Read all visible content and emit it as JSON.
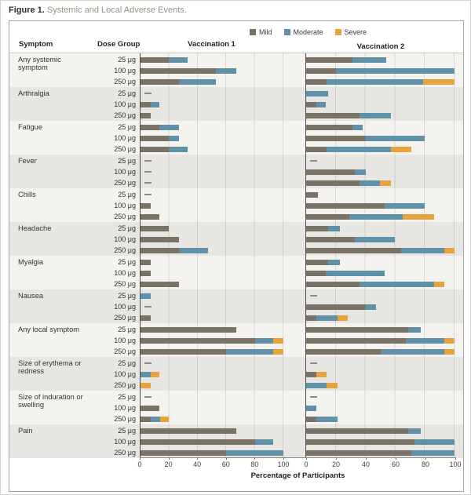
{
  "figure": {
    "label": "Figure 1.",
    "title": "Systemic and Local Adverse Events."
  },
  "chart_data": {
    "type": "bar",
    "subtype": "horizontal_stacked",
    "panels": [
      "Vaccination 1",
      "Vaccination 2"
    ],
    "column_headers": {
      "symptom": "Symptom",
      "dose": "Dose Group"
    },
    "legend": [
      {
        "name": "Mild",
        "color": "#7a7265"
      },
      {
        "name": "Moderate",
        "color": "#6191a8"
      },
      {
        "name": "Severe",
        "color": "#e7a33c"
      }
    ],
    "dose_groups": [
      "25 μg",
      "100 μg",
      "250 μg"
    ],
    "x_axis": {
      "ticks": [
        0,
        20,
        40,
        60,
        80,
        100
      ],
      "min": 0,
      "max": 100,
      "label": "Percentage of Participants"
    },
    "zero_marker": "—",
    "series_order": [
      "mild",
      "moderate",
      "severe"
    ],
    "symptoms": [
      {
        "name": "Any systemic symptom",
        "vaccination1": [
          [
            20,
            13,
            0
          ],
          [
            53,
            14,
            0
          ],
          [
            27,
            26,
            0
          ]
        ],
        "vaccination2": [
          [
            31,
            23,
            0
          ],
          [
            20,
            80,
            0
          ],
          [
            14,
            65,
            21
          ]
        ]
      },
      {
        "name": "Arthralgia",
        "vaccination1": [
          [
            0,
            0,
            0
          ],
          [
            7,
            6,
            0
          ],
          [
            7,
            0,
            0
          ]
        ],
        "vaccination2": [
          [
            0,
            15,
            0
          ],
          [
            7,
            6,
            0
          ],
          [
            36,
            21,
            0
          ]
        ]
      },
      {
        "name": "Fatigue",
        "vaccination1": [
          [
            13,
            14,
            0
          ],
          [
            20,
            7,
            0
          ],
          [
            20,
            13,
            0
          ]
        ],
        "vaccination2": [
          [
            31,
            7,
            0
          ],
          [
            40,
            40,
            0
          ],
          [
            14,
            43,
            14
          ]
        ]
      },
      {
        "name": "Fever",
        "vaccination1": [
          [
            0,
            0,
            0
          ],
          [
            0,
            0,
            0
          ],
          [
            0,
            0,
            0
          ]
        ],
        "vaccination2": [
          [
            0,
            0,
            0
          ],
          [
            33,
            7,
            0
          ],
          [
            36,
            14,
            7
          ]
        ]
      },
      {
        "name": "Chills",
        "vaccination1": [
          [
            0,
            0,
            0
          ],
          [
            7,
            0,
            0
          ],
          [
            13,
            0,
            0
          ]
        ],
        "vaccination2": [
          [
            8,
            0,
            0
          ],
          [
            53,
            27,
            0
          ],
          [
            29,
            36,
            21
          ]
        ]
      },
      {
        "name": "Headache",
        "vaccination1": [
          [
            20,
            0,
            0
          ],
          [
            27,
            0,
            0
          ],
          [
            27,
            20,
            0
          ]
        ],
        "vaccination2": [
          [
            15,
            8,
            0
          ],
          [
            33,
            27,
            0
          ],
          [
            64,
            29,
            7
          ]
        ]
      },
      {
        "name": "Myalgia",
        "vaccination1": [
          [
            7,
            0,
            0
          ],
          [
            7,
            0,
            0
          ],
          [
            27,
            0,
            0
          ]
        ],
        "vaccination2": [
          [
            15,
            8,
            0
          ],
          [
            13,
            40,
            0
          ],
          [
            36,
            50,
            7
          ]
        ]
      },
      {
        "name": "Nausea",
        "vaccination1": [
          [
            0,
            7,
            0
          ],
          [
            0,
            0,
            0
          ],
          [
            7,
            0,
            0
          ]
        ],
        "vaccination2": [
          [
            0,
            0,
            0
          ],
          [
            40,
            7,
            0
          ],
          [
            7,
            14,
            7
          ]
        ]
      },
      {
        "name": "Any local symptom",
        "vaccination1": [
          [
            67,
            0,
            0
          ],
          [
            80,
            13,
            7
          ],
          [
            60,
            33,
            7
          ]
        ],
        "vaccination2": [
          [
            69,
            8,
            0
          ],
          [
            67,
            26,
            7
          ],
          [
            50,
            43,
            7
          ]
        ]
      },
      {
        "name": "Size of erythema or redness",
        "vaccination1": [
          [
            0,
            0,
            0
          ],
          [
            0,
            7,
            6
          ],
          [
            0,
            0,
            7
          ]
        ],
        "vaccination2": [
          [
            0,
            0,
            0
          ],
          [
            7,
            0,
            7
          ],
          [
            0,
            14,
            7
          ]
        ]
      },
      {
        "name": "Size of induration or swelling",
        "vaccination1": [
          [
            0,
            0,
            0
          ],
          [
            13,
            0,
            0
          ],
          [
            7,
            7,
            6
          ]
        ],
        "vaccination2": [
          [
            0,
            0,
            0
          ],
          [
            0,
            7,
            0
          ],
          [
            7,
            14,
            0
          ]
        ]
      },
      {
        "name": "Pain",
        "vaccination1": [
          [
            67,
            0,
            0
          ],
          [
            80,
            13,
            0
          ],
          [
            60,
            40,
            0
          ]
        ],
        "vaccination2": [
          [
            69,
            8,
            0
          ],
          [
            73,
            27,
            0
          ],
          [
            71,
            29,
            0
          ]
        ]
      }
    ]
  }
}
